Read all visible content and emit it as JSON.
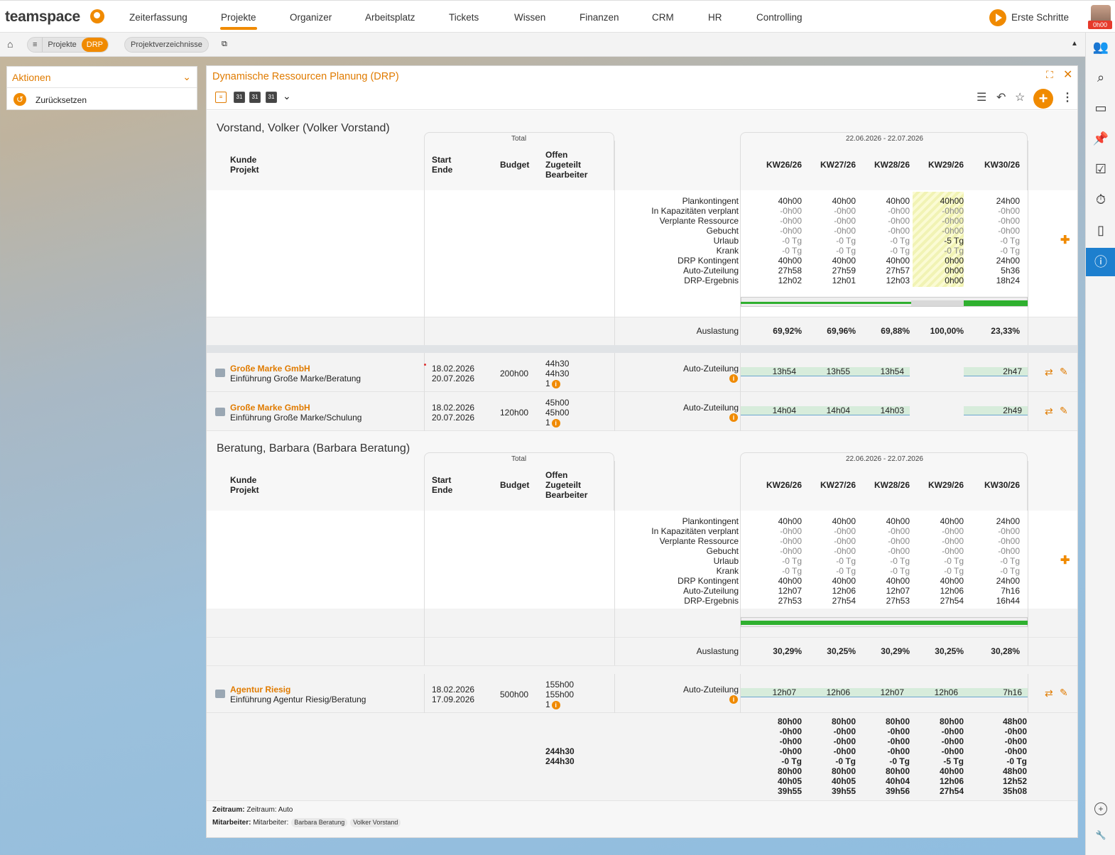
{
  "app": {
    "logo": "teamspace",
    "nav": [
      "Zeiterfassung",
      "Projekte",
      "Organizer",
      "Arbeitsplatz",
      "Tickets",
      "Wissen",
      "Finanzen",
      "CRM",
      "HR",
      "Controlling"
    ],
    "active_nav": "Projekte",
    "start_label": "Erste Schritte",
    "avatar_badge": "0h00",
    "accent": "#f08a00"
  },
  "breadcrumb": {
    "home": "⌂",
    "menu": "≡",
    "items": [
      "Projekte",
      "DRP"
    ],
    "extra": "Projektverzeichnisse"
  },
  "aktionen": {
    "title": "Aktionen",
    "items": [
      "Zurücksetzen"
    ]
  },
  "panel": {
    "title": "Dynamische Ressourcen Planung (DRP)"
  },
  "headers": {
    "total": "Total",
    "kunde": "Kunde",
    "projekt": "Projekt",
    "start": "Start",
    "ende": "Ende",
    "budget": "Budget",
    "offen": "Offen",
    "zugeteilt": "Zugeteilt",
    "bearbeiter": "Bearbeiter",
    "range": "22.06.2026 - 22.07.2026",
    "weeks": [
      "KW26/26",
      "KW27/26",
      "KW28/26",
      "KW29/26",
      "KW30/26"
    ]
  },
  "row_labels": [
    "Plankontingent",
    "In Kapazitäten verplant",
    "Verplante Ressource",
    "Gebucht",
    "Urlaub",
    "Krank",
    "DRP Kontingent",
    "Auto-Zuteilung",
    "DRP-Ergebnis"
  ],
  "auslastung_label": "Auslastung",
  "auto_label": "Auto-Zuteilung",
  "persons": [
    {
      "name": "Vorstand, Volker (Volker Vorstand)",
      "stats": [
        [
          "40h00",
          "40h00",
          "40h00",
          "40h00",
          "24h00"
        ],
        [
          "-0h00",
          "-0h00",
          "-0h00",
          "-0h00",
          "-0h00"
        ],
        [
          "-0h00",
          "-0h00",
          "-0h00",
          "-0h00",
          "-0h00"
        ],
        [
          "-0h00",
          "-0h00",
          "-0h00",
          "-0h00",
          "-0h00"
        ],
        [
          "-0 Tg",
          "-0 Tg",
          "-0 Tg",
          "-5 Tg",
          "-0 Tg"
        ],
        [
          "-0 Tg",
          "-0 Tg",
          "-0 Tg",
          "-0 Tg",
          "-0 Tg"
        ],
        [
          "40h00",
          "40h00",
          "40h00",
          "0h00",
          "24h00"
        ],
        [
          "27h58",
          "27h59",
          "27h57",
          "0h00",
          "5h36"
        ],
        [
          "12h02",
          "12h01",
          "12h03",
          "0h00",
          "18h24"
        ]
      ],
      "auslastung": [
        "69,92%",
        "69,96%",
        "69,88%",
        "100,00%",
        "23,33%"
      ],
      "projects": [
        {
          "kunde": "Große Marke GmbH",
          "projekt": "Einführung Große Marke/Beratung",
          "start": "18.02.2026",
          "ende": "20.07.2026",
          "budget": "200h00",
          "offen": "44h30",
          "zugeteilt": "44h30",
          "bearbeiter": "1",
          "auto": [
            "13h54",
            "13h55",
            "13h54",
            "",
            "2h47"
          ]
        },
        {
          "kunde": "Große Marke GmbH",
          "projekt": "Einführung Große Marke/Schulung",
          "start": "18.02.2026",
          "ende": "20.07.2026",
          "budget": "120h00",
          "offen": "45h00",
          "zugeteilt": "45h00",
          "bearbeiter": "1",
          "auto": [
            "14h04",
            "14h04",
            "14h03",
            "",
            "2h49"
          ]
        }
      ]
    },
    {
      "name": "Beratung, Barbara (Barbara Beratung)",
      "stats": [
        [
          "40h00",
          "40h00",
          "40h00",
          "40h00",
          "24h00"
        ],
        [
          "-0h00",
          "-0h00",
          "-0h00",
          "-0h00",
          "-0h00"
        ],
        [
          "-0h00",
          "-0h00",
          "-0h00",
          "-0h00",
          "-0h00"
        ],
        [
          "-0h00",
          "-0h00",
          "-0h00",
          "-0h00",
          "-0h00"
        ],
        [
          "-0 Tg",
          "-0 Tg",
          "-0 Tg",
          "-0 Tg",
          "-0 Tg"
        ],
        [
          "-0 Tg",
          "-0 Tg",
          "-0 Tg",
          "-0 Tg",
          "-0 Tg"
        ],
        [
          "40h00",
          "40h00",
          "40h00",
          "40h00",
          "24h00"
        ],
        [
          "12h07",
          "12h06",
          "12h07",
          "12h06",
          "7h16"
        ],
        [
          "27h53",
          "27h54",
          "27h53",
          "27h54",
          "16h44"
        ]
      ],
      "auslastung": [
        "30,29%",
        "30,25%",
        "30,29%",
        "30,25%",
        "30,28%"
      ],
      "projects": [
        {
          "kunde": "Agentur Riesig",
          "projekt": "Einführung Agentur Riesig/Beratung",
          "start": "18.02.2026",
          "ende": "17.09.2026",
          "budget": "500h00",
          "offen": "155h00",
          "zugeteilt": "155h00",
          "bearbeiter": "1",
          "auto": [
            "12h07",
            "12h06",
            "12h07",
            "12h06",
            "7h16"
          ]
        }
      ]
    }
  ],
  "totals": {
    "offen": "244h30",
    "zugeteilt": "244h30",
    "weeks": [
      [
        "80h00",
        "-0h00",
        "-0h00",
        "-0h00",
        "-0 Tg",
        "80h00",
        "40h05",
        "39h55"
      ],
      [
        "80h00",
        "-0h00",
        "-0h00",
        "-0h00",
        "-0 Tg",
        "80h00",
        "40h05",
        "39h55"
      ],
      [
        "80h00",
        "-0h00",
        "-0h00",
        "-0h00",
        "-0 Tg",
        "80h00",
        "40h04",
        "39h56"
      ],
      [
        "80h00",
        "-0h00",
        "-0h00",
        "-0h00",
        "-5 Tg",
        "40h00",
        "12h06",
        "27h54"
      ],
      [
        "48h00",
        "-0h00",
        "-0h00",
        "-0h00",
        "-0 Tg",
        "48h00",
        "12h52",
        "35h08"
      ]
    ]
  },
  "footer": {
    "zeitraum_label": "Zeitraum:",
    "zeitraum_value": "Zeitraum: Auto",
    "mitarbeiter_label": "Mitarbeiter:",
    "mitarbeiter_value": "Mitarbeiter:",
    "chips": [
      "Barbara Beratung",
      "Volker Vorstand"
    ]
  }
}
